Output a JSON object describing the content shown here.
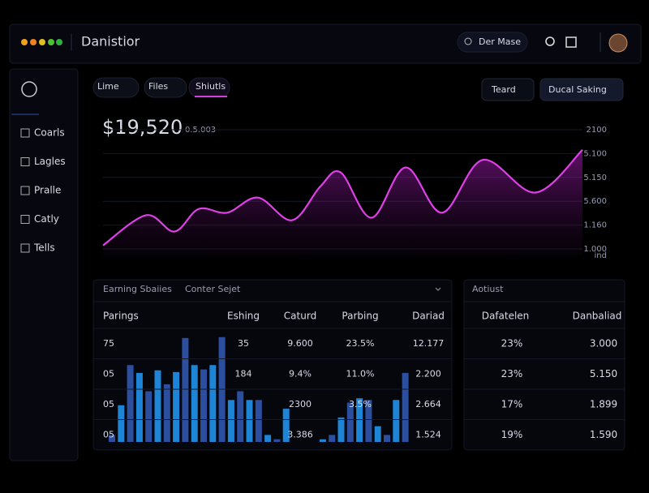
{
  "header": {
    "title": "Danistior",
    "search": "Der Mase"
  },
  "sidebar": {
    "items": [
      "Coarls",
      "Lagles",
      "Pralle",
      "Catly",
      "Tells"
    ]
  },
  "tabs": [
    "Lime",
    "Files",
    "Shiutls"
  ],
  "buttons": [
    "Teard",
    "Ducal Saking"
  ],
  "summary": {
    "amount": "$19,520",
    "change": "0.5.003"
  },
  "chart": {
    "type": "line",
    "color": "#e040e8",
    "x": [
      0,
      53,
      88,
      118,
      153,
      191,
      233,
      268,
      293,
      331,
      373,
      418,
      468,
      533,
      591
    ],
    "values": [
      8,
      32,
      19,
      37,
      34,
      46,
      28,
      55,
      66,
      30,
      70,
      34,
      76,
      50,
      84
    ],
    "xlim": [
      0,
      591
    ],
    "ylim": [
      0,
      100
    ],
    "axis_labels": [
      "2100",
      "5.100",
      "5.150",
      "5.600",
      "1.160",
      "1.000",
      "ind"
    ]
  },
  "earnings": {
    "title": "Earning Sbaiies",
    "filter": "Conter Sejet",
    "columns": [
      "Parings",
      "Eshing",
      "Caturd",
      "Parbing",
      "Dariad"
    ],
    "rows": [
      [
        "75",
        "35",
        "9.600",
        "23.5%",
        "12.177"
      ],
      [
        "05",
        "184",
        "9.4%",
        "11.0%",
        "2.200"
      ],
      [
        "05",
        null,
        "2300",
        "3.5%",
        "2.664"
      ],
      [
        "05",
        null,
        "3.386",
        null,
        "1.524"
      ]
    ],
    "bars": {
      "colors": [
        "#2b4f9e",
        "#1e84d6"
      ],
      "ylim": [
        0,
        130
      ],
      "values": [
        8,
        42,
        88,
        79,
        58,
        82,
        66,
        80,
        119,
        88,
        83,
        88,
        120,
        48,
        58,
        48,
        48,
        8,
        3,
        38,
        null,
        null,
        null,
        3,
        8,
        28,
        45,
        50,
        48,
        18,
        8,
        48,
        79
      ]
    }
  },
  "account": {
    "title": "Aotiust",
    "columns": [
      "Dafatelen",
      "Danbaliad"
    ],
    "rows": [
      [
        "23%",
        "3.000"
      ],
      [
        "23%",
        "5.150"
      ],
      [
        "17%",
        "1.899"
      ],
      [
        "19%",
        "1.590"
      ]
    ]
  }
}
